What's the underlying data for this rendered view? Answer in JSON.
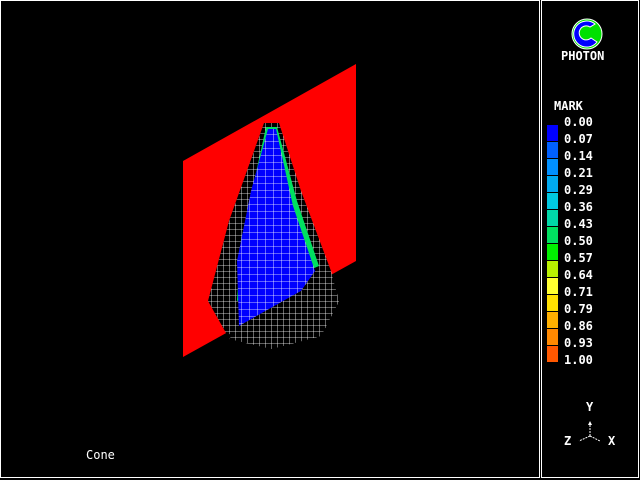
{
  "viewport": {
    "model_name": "Cone"
  },
  "logo": {
    "text": "PHOTON"
  },
  "legend": {
    "title": "MARK",
    "values": [
      "0.00",
      "0.07",
      "0.14",
      "0.21",
      "0.29",
      "0.36",
      "0.43",
      "0.50",
      "0.57",
      "0.64",
      "0.71",
      "0.79",
      "0.86",
      "0.93",
      "1.00"
    ],
    "colors": [
      "#0000ff",
      "#0060ff",
      "#0090ff",
      "#00aaf0",
      "#00c8e0",
      "#00d8a8",
      "#00e060",
      "#00f000",
      "#b8f000",
      "#ffff30",
      "#ffe000",
      "#ffb000",
      "#ff8800",
      "#ff5800",
      "#ff0000"
    ]
  },
  "axes": {
    "y": "Y",
    "z": "Z",
    "x": "X"
  }
}
